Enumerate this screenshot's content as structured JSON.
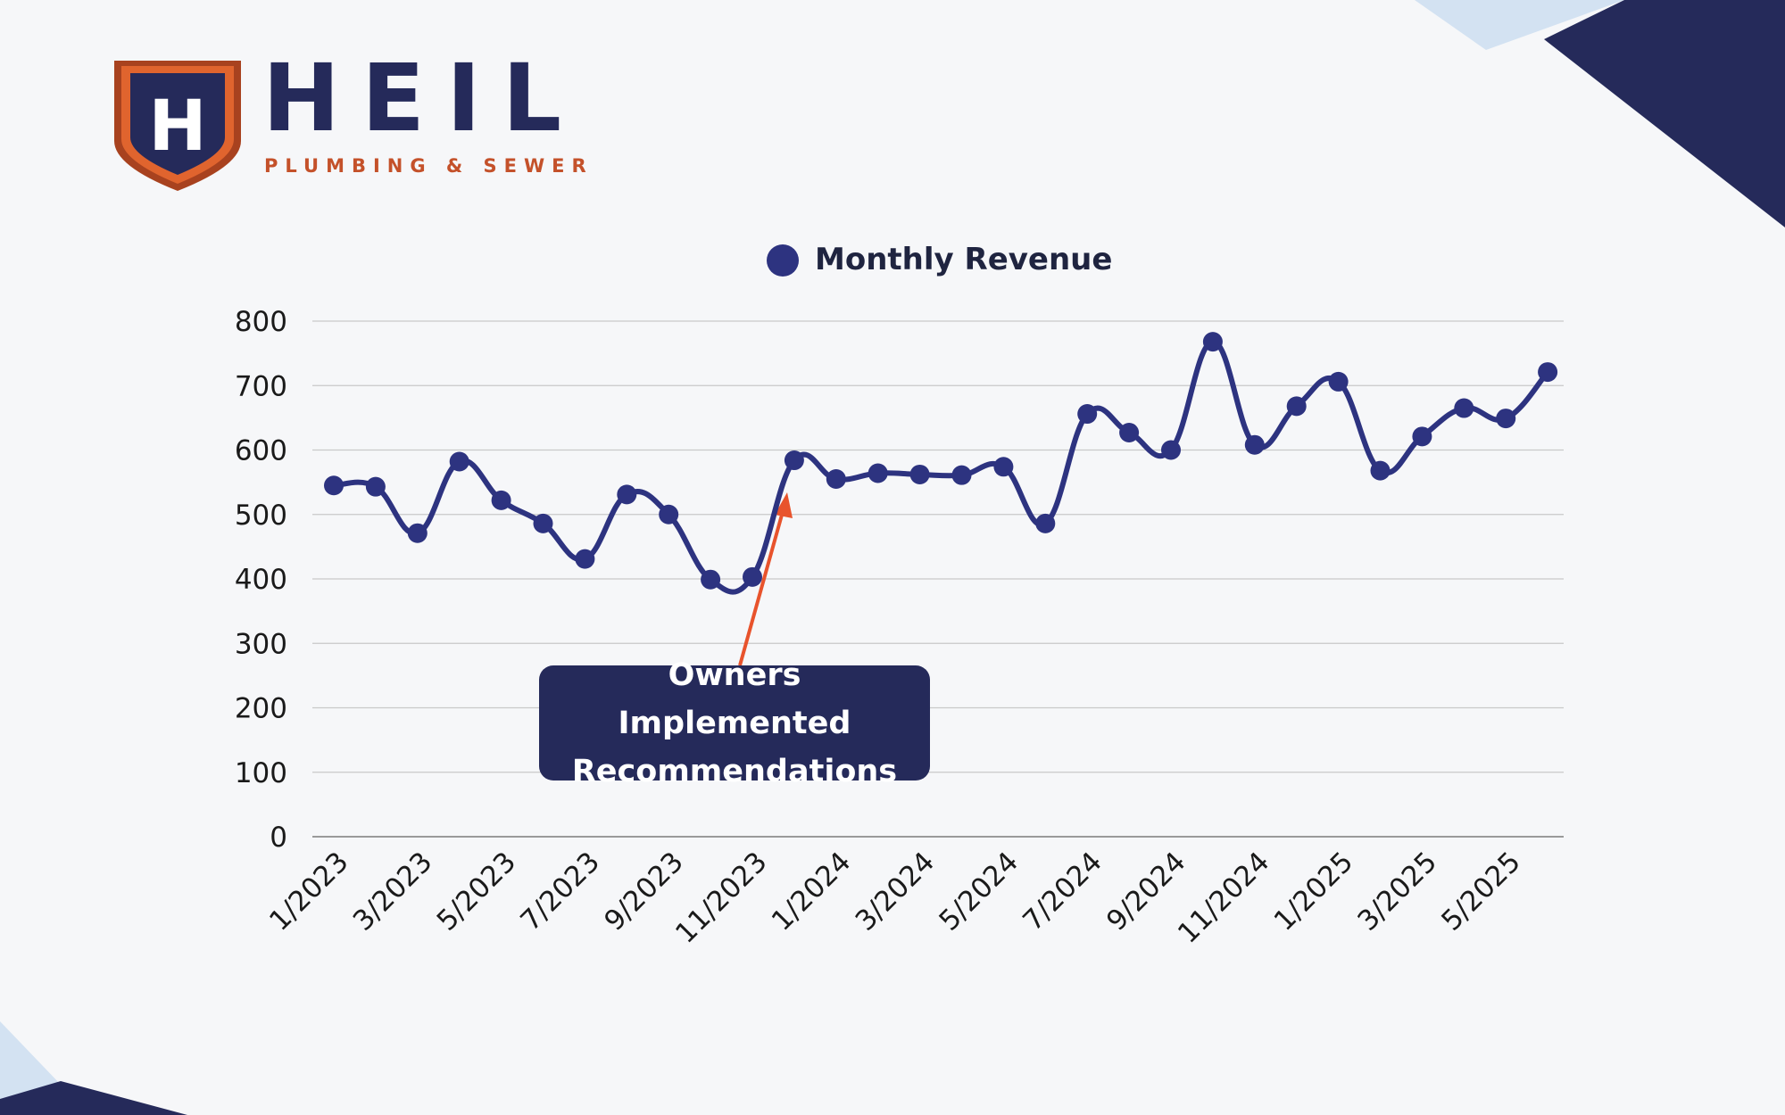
{
  "logo": {
    "word": "HEIL",
    "subtitle": "PLUMBING & SEWER",
    "mark_letter": "H"
  },
  "colors": {
    "navy": "#252a5a",
    "series": "#2d3380",
    "accent_orange": "#e8532c",
    "brand_orange": "#c4512a",
    "light_blue": "#d3e2f2"
  },
  "callout": {
    "text": "Owners Implemented Recommendations"
  },
  "chart_data": {
    "type": "line",
    "title": "",
    "xlabel": "",
    "ylabel": "",
    "legend": {
      "position": "top-center",
      "entries": [
        "Monthly Revenue"
      ]
    },
    "ylim": [
      0,
      800
    ],
    "yticks": [
      0,
      100,
      200,
      300,
      400,
      500,
      600,
      700,
      800
    ],
    "grid": true,
    "categories": [
      "1/2023",
      "2/2023",
      "3/2023",
      "4/2023",
      "5/2023",
      "6/2023",
      "7/2023",
      "8/2023",
      "9/2023",
      "10/2023",
      "11/2023",
      "12/2023",
      "1/2024",
      "2/2024",
      "3/2024",
      "4/2024",
      "5/2024",
      "6/2024",
      "7/2024",
      "8/2024",
      "9/2024",
      "10/2024",
      "11/2024",
      "12/2024",
      "1/2025",
      "2/2025",
      "3/2025",
      "4/2025",
      "5/2025",
      "6/2025"
    ],
    "xtick_labels": [
      "1/2023",
      "3/2023",
      "5/2023",
      "7/2023",
      "9/2023",
      "11/2023",
      "1/2024",
      "3/2024",
      "5/2024",
      "7/2024",
      "9/2024",
      "11/2024",
      "1/2025",
      "3/2025",
      "5/2025"
    ],
    "series": [
      {
        "name": "Monthly Revenue",
        "values": [
          545,
          543,
          471,
          582,
          522,
          486,
          431,
          531,
          500,
          399,
          403,
          584,
          555,
          564,
          562,
          561,
          574,
          486,
          656,
          627,
          600,
          768,
          608,
          668,
          706,
          568,
          621,
          665,
          649,
          721
        ]
      }
    ],
    "annotations": [
      {
        "text": "Owners Implemented Recommendations",
        "points_to": "12/2023"
      }
    ]
  }
}
